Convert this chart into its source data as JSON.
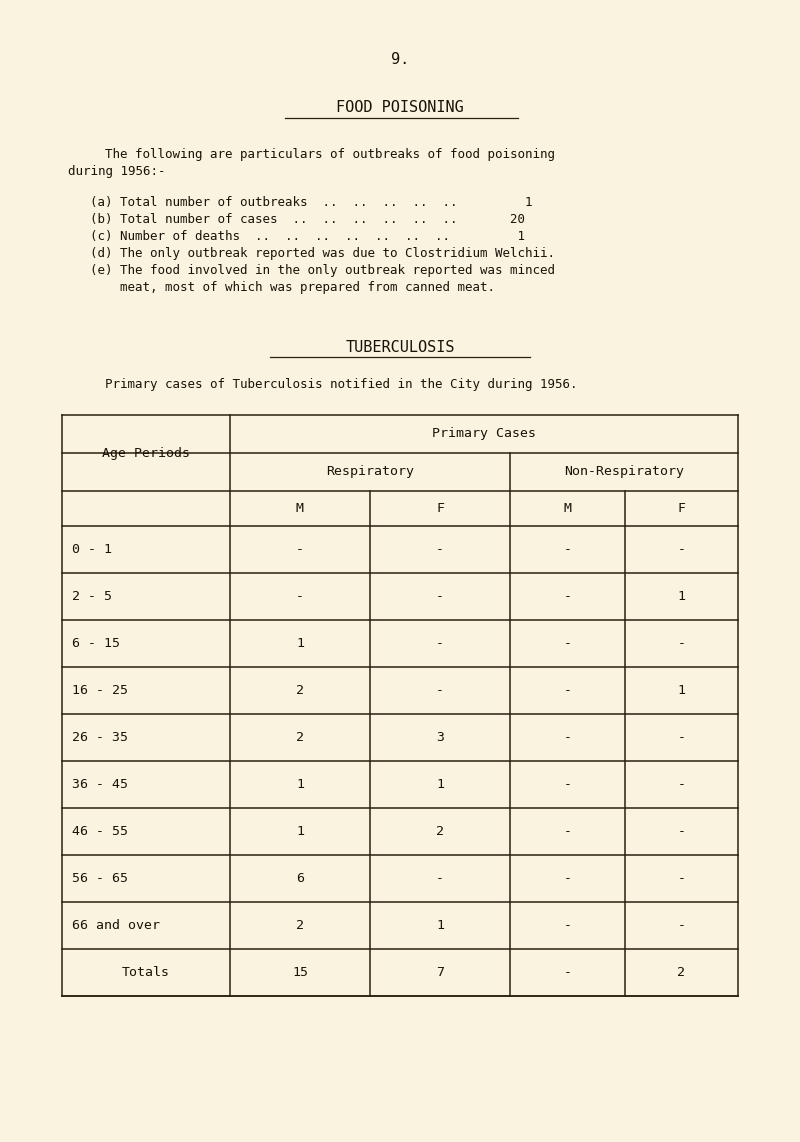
{
  "background_color": "#faf3e0",
  "page_number": "9.",
  "food_poisoning_title": "FOOD POISONING",
  "intro_line1": "The following are particulars of outbreaks of food poisoning",
  "intro_line2": "during 1956:-",
  "item_a": "(a) Total number of outbreaks  ..  ..  ..  ..  ..         1",
  "item_b": "(b) Total number of cases  ..  ..  ..  ..  ..  ..       20",
  "item_c": "(c) Number of deaths  ..  ..  ..  ..  ..  ..  ..         1",
  "item_d": "(d) The only outbreak reported was due to Clostridium Welchii.",
  "item_e1": "(e) The food involved in the only outbreak reported was minced",
  "item_e2": "        meat, most of which was prepared from canned meat.",
  "tb_title": "TUBERCULOSIS",
  "tb_intro": "Primary cases of Tuberculosis notified in the City during 1956.",
  "table_rows": [
    [
      "0 - 1",
      "-",
      "-",
      "-",
      "-"
    ],
    [
      "2 - 5",
      "-",
      "-",
      "-",
      "1"
    ],
    [
      "6 - 15",
      "1",
      "-",
      "-",
      "-"
    ],
    [
      "16 - 25",
      "2",
      "-",
      "-",
      "1"
    ],
    [
      "26 - 35",
      "2",
      "3",
      "-",
      "-"
    ],
    [
      "36 - 45",
      "1",
      "1",
      "-",
      "-"
    ],
    [
      "46 - 55",
      "1",
      "2",
      "-",
      "-"
    ],
    [
      "56 - 65",
      "6",
      "-",
      "-",
      "-"
    ],
    [
      "66 and over",
      "2",
      "1",
      "-",
      "-"
    ],
    [
      "Totals",
      "15",
      "7",
      "-",
      "2"
    ]
  ],
  "text_color": "#1a1208",
  "line_color": "#2a2010",
  "font_size_title": 11,
  "font_size_body": 9,
  "font_size_table": 9.5
}
